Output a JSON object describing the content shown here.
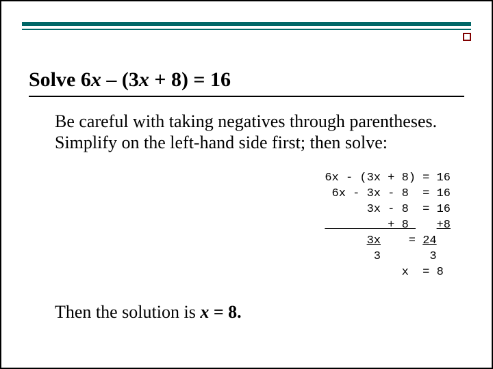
{
  "title_parts": {
    "prefix": "Solve 6",
    "var1": "x",
    "mid": " – (3",
    "var2": "x",
    "suffix": " + 8) = 16"
  },
  "body": "Be careful with taking negatives through parentheses. Simplify on the left-hand side first; then solve:",
  "equation": {
    "font_family": "Courier New",
    "text_color": "#000000",
    "lines": [
      {
        "left": "6x - (3x + 8)",
        "op": "=",
        "right": "16"
      },
      {
        "left": " 6x - 3x - 8 ",
        "op": "=",
        "right": "16"
      },
      {
        "left": "      3x - 8 ",
        "op": "=",
        "right": "16"
      },
      {
        "left": "         + 8 ",
        "op": " ",
        "right": "+8",
        "underline_left": true,
        "underline_right": true
      },
      {
        "left_num": "3x",
        "left_den": " 3",
        "left_pad": "      ",
        "op": "=",
        "right_num": "24",
        "right_den": " 3",
        "fraction": true
      },
      {
        "left": "           x ",
        "op": "=",
        "right": "8 "
      }
    ]
  },
  "conclusion_parts": {
    "prefix": "Then the solution is  ",
    "var": "x",
    "suffix": " = 8."
  },
  "colors": {
    "top_bar": "#006666",
    "accent_border": "#800000",
    "background": "#ffffff",
    "text": "#000000"
  }
}
